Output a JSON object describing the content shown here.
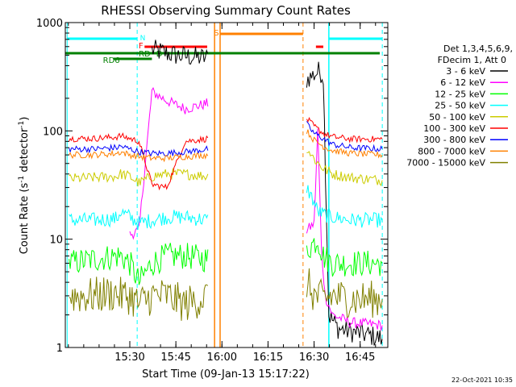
{
  "chart_data": {
    "type": "line",
    "title": "RHESSI Observing Summary Count Rates",
    "xlabel": "Start Time (09-Jan-13 15:17:22)",
    "ylabel_main": "Count Rate (s",
    "ylabel_sup1": "-1",
    "ylabel_mid": " detector",
    "ylabel_sup2": "-1",
    "ylabel_end": ")",
    "footer": "22-Oct-2021 10:35",
    "yscale": "log",
    "xlim": [
      15.15,
      16.9
    ],
    "ylim": [
      1,
      1000
    ],
    "x_ticks": [
      {
        "x": 15.5,
        "label": "15:30"
      },
      {
        "x": 15.75,
        "label": "15:45"
      },
      {
        "x": 16.0,
        "label": "16:00"
      },
      {
        "x": 16.25,
        "label": "16:15"
      },
      {
        "x": 16.5,
        "label": "16:30"
      },
      {
        "x": 16.75,
        "label": "16:45"
      }
    ],
    "y_ticks": [
      {
        "y": 1,
        "label": "1"
      },
      {
        "y": 10,
        "label": "10"
      },
      {
        "y": 100,
        "label": "100"
      },
      {
        "y": 1000,
        "label": "1000"
      }
    ],
    "legend_header": [
      "Det 1,3,4,5,6,9,",
      "FDecim 1, Att 0"
    ],
    "legend_position": "right",
    "series": [
      {
        "name": "3 - 6 keV",
        "color": "#000000",
        "x": [
          15.62,
          15.75,
          15.85,
          15.93,
          16.46,
          16.5,
          16.53,
          16.55,
          16.58,
          16.63,
          16.7,
          16.8,
          16.87
        ],
        "y": [
          560,
          500,
          480,
          470,
          300,
          330,
          360,
          320,
          2,
          1.5,
          1.4,
          1.3,
          1.2
        ]
      },
      {
        "name": "6 - 12 keV",
        "color": "#ff00ff",
        "x": [
          15.5,
          15.55,
          15.62,
          15.7,
          15.8,
          15.93,
          16.46,
          16.5,
          16.52,
          16.54,
          16.56,
          16.6,
          16.7,
          16.87
        ],
        "y": [
          11,
          12,
          230,
          190,
          160,
          180,
          12,
          14,
          100,
          8,
          3,
          2,
          1.7,
          1.6
        ]
      },
      {
        "name": "12 - 25 keV",
        "color": "#00ff00",
        "x": [
          15.17,
          15.3,
          15.43,
          15.45,
          15.5,
          15.55,
          15.62,
          15.7,
          15.8,
          15.93,
          16.46,
          16.52,
          16.55,
          16.6,
          16.7,
          16.87
        ],
        "y": [
          6,
          6.5,
          7,
          7,
          6,
          4,
          6,
          7,
          7,
          6.5,
          8,
          10,
          7,
          6,
          6,
          6
        ]
      },
      {
        "name": "25 - 50 keV",
        "color": "#00ffff",
        "x": [
          15.17,
          15.3,
          15.43,
          15.45,
          15.5,
          15.55,
          15.62,
          15.7,
          15.8,
          15.93,
          16.46,
          16.5,
          16.52,
          16.55,
          16.6,
          16.7,
          16.87
        ],
        "y": [
          15,
          15,
          15.5,
          18,
          16,
          14,
          15,
          16,
          16,
          15,
          30,
          22,
          18,
          17,
          16,
          15,
          15
        ]
      },
      {
        "name": "50 - 100 keV",
        "color": "#cccc00",
        "x": [
          15.17,
          15.3,
          15.43,
          15.45,
          15.5,
          15.55,
          15.62,
          15.7,
          15.8,
          15.93,
          16.46,
          16.5,
          16.55,
          16.6,
          16.7,
          16.87
        ],
        "y": [
          36,
          37,
          38,
          40,
          38,
          33,
          38,
          40,
          40,
          38,
          70,
          55,
          45,
          40,
          37,
          35
        ]
      },
      {
        "name": "100 - 300 keV",
        "color": "#ff0000",
        "x": [
          15.17,
          15.3,
          15.43,
          15.45,
          15.5,
          15.55,
          15.62,
          15.7,
          15.8,
          15.93,
          16.46,
          16.5,
          16.55,
          16.6,
          16.7,
          16.87
        ],
        "y": [
          85,
          85,
          88,
          90,
          85,
          80,
          32,
          30,
          80,
          85,
          130,
          110,
          95,
          88,
          84,
          84
        ]
      },
      {
        "name": "300 - 800 keV",
        "color": "#0000ff",
        "x": [
          15.17,
          15.3,
          15.43,
          15.45,
          15.5,
          15.55,
          15.62,
          15.7,
          15.8,
          15.93,
          16.46,
          16.5,
          16.55,
          16.6,
          16.7,
          16.87
        ],
        "y": [
          68,
          68,
          70,
          72,
          68,
          64,
          62,
          62,
          64,
          68,
          115,
          95,
          85,
          75,
          70,
          68
        ]
      },
      {
        "name": "800 - 7000 keV",
        "color": "#ff8000",
        "x": [
          15.17,
          15.3,
          15.43,
          15.45,
          15.5,
          15.55,
          15.62,
          15.7,
          15.8,
          15.93,
          16.46,
          16.5,
          16.55,
          16.6,
          16.7,
          16.87
        ],
        "y": [
          60,
          60,
          62,
          64,
          60,
          58,
          56,
          56,
          58,
          60,
          100,
          82,
          72,
          66,
          62,
          60
        ]
      },
      {
        "name": "7000 - 15000 keV",
        "color": "#808000",
        "x": [
          15.17,
          15.3,
          15.43,
          15.45,
          15.5,
          15.55,
          15.62,
          15.7,
          15.8,
          15.93,
          16.46,
          16.5,
          16.55,
          16.6,
          16.7,
          16.87
        ],
        "y": [
          3,
          3,
          3.2,
          3,
          3,
          2.5,
          3,
          3,
          2.5,
          3,
          4,
          3,
          2.8,
          3,
          2.8,
          2.8
        ]
      }
    ],
    "flag_labels": [
      {
        "text": "N",
        "color": "#00ffff"
      },
      {
        "text": "F",
        "color": "#ff0000"
      },
      {
        "text": "S",
        "color": "#ff8000"
      },
      {
        "text": "RD6",
        "color": "#008000"
      },
      {
        "text": "RD",
        "color": "#008000"
      },
      {
        "text": "D",
        "color": "#008000"
      }
    ],
    "colors": {
      "axes": "#000000",
      "background": "#ffffff",
      "night": "#00ffff",
      "flare": "#ff0000",
      "saa": "#ff8000",
      "decimation": "#008000",
      "attenuator": "#404040"
    }
  }
}
